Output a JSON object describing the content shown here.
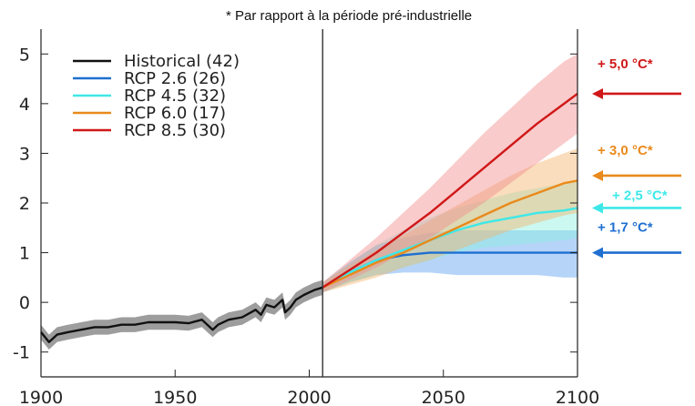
{
  "chart_data": {
    "type": "line",
    "note": "* Par rapport à la période pré-industrielle",
    "xlim": [
      1900,
      2100
    ],
    "ylim": [
      -1.5,
      5.5
    ],
    "x_ticks": [
      "1900",
      "1950",
      "2000",
      "2050",
      "2100"
    ],
    "y_ticks": [
      "5",
      "4",
      "3",
      "2",
      "1",
      "0",
      "-1"
    ],
    "divider_x": 2005,
    "grid": false,
    "legend_position": "top-left",
    "series": [
      {
        "name": "Historical (42)",
        "color": "#111111",
        "band_color": "#8c8c8c",
        "x": [
          1900,
          1903,
          1906,
          1910,
          1915,
          1920,
          1925,
          1930,
          1935,
          1940,
          1945,
          1950,
          1955,
          1960,
          1962,
          1964,
          1966,
          1970,
          1975,
          1980,
          1982,
          1984,
          1987,
          1990,
          1991,
          1993,
          1995,
          1998,
          2000,
          2002,
          2005
        ],
        "y": [
          -0.6,
          -0.8,
          -0.65,
          -0.6,
          -0.55,
          -0.5,
          -0.5,
          -0.45,
          -0.45,
          -0.4,
          -0.4,
          -0.4,
          -0.42,
          -0.35,
          -0.45,
          -0.55,
          -0.45,
          -0.35,
          -0.3,
          -0.15,
          -0.25,
          -0.05,
          -0.1,
          0.05,
          -0.2,
          -0.1,
          0.05,
          0.15,
          0.2,
          0.25,
          0.3
        ],
        "band": 0.15
      },
      {
        "name": "RCP 2.6 (26)",
        "color": "#1f6fd1",
        "band_color": "#5aa0f0",
        "x": [
          2005,
          2015,
          2025,
          2035,
          2045,
          2055,
          2065,
          2075,
          2085,
          2095,
          2100
        ],
        "y": [
          0.3,
          0.6,
          0.85,
          0.95,
          1.0,
          1.0,
          1.0,
          1.0,
          1.0,
          1.0,
          1.0
        ],
        "band_lo": [
          0.2,
          0.4,
          0.55,
          0.6,
          0.6,
          0.55,
          0.55,
          0.55,
          0.55,
          0.5,
          0.5
        ],
        "band_hi": [
          0.4,
          0.8,
          1.15,
          1.3,
          1.4,
          1.45,
          1.45,
          1.45,
          1.45,
          1.45,
          1.45
        ]
      },
      {
        "name": "RCP 4.5 (32)",
        "color": "#3ee8e8",
        "band_color": "#8cf0e0",
        "x": [
          2005,
          2015,
          2025,
          2035,
          2045,
          2055,
          2065,
          2075,
          2085,
          2095,
          2100
        ],
        "y": [
          0.3,
          0.6,
          0.85,
          1.05,
          1.25,
          1.45,
          1.6,
          1.7,
          1.8,
          1.85,
          1.9
        ],
        "band_lo": [
          0.2,
          0.4,
          0.55,
          0.7,
          0.85,
          1.0,
          1.1,
          1.15,
          1.2,
          1.25,
          1.3
        ],
        "band_hi": [
          0.4,
          0.8,
          1.15,
          1.45,
          1.7,
          1.9,
          2.05,
          2.2,
          2.3,
          2.4,
          2.45
        ]
      },
      {
        "name": "RCP 6.0 (17)",
        "color": "#e98a1c",
        "band_color": "#f5b46a",
        "x": [
          2005,
          2015,
          2025,
          2035,
          2045,
          2055,
          2065,
          2075,
          2085,
          2095,
          2100
        ],
        "y": [
          0.3,
          0.55,
          0.8,
          1.0,
          1.25,
          1.5,
          1.75,
          2.0,
          2.2,
          2.4,
          2.45
        ],
        "band_lo": [
          0.2,
          0.35,
          0.5,
          0.7,
          0.85,
          1.05,
          1.25,
          1.45,
          1.6,
          1.75,
          1.8
        ],
        "band_hi": [
          0.4,
          0.75,
          1.05,
          1.35,
          1.65,
          1.95,
          2.25,
          2.55,
          2.8,
          3.0,
          3.1
        ]
      },
      {
        "name": "RCP 8.5 (30)",
        "color": "#d01818",
        "band_color": "#f28c8c",
        "x": [
          2005,
          2015,
          2025,
          2035,
          2045,
          2055,
          2065,
          2075,
          2085,
          2095,
          2100
        ],
        "y": [
          0.3,
          0.65,
          1.0,
          1.4,
          1.8,
          2.25,
          2.7,
          3.15,
          3.6,
          4.0,
          4.2
        ],
        "band_lo": [
          0.2,
          0.45,
          0.7,
          1.0,
          1.3,
          1.65,
          2.0,
          2.4,
          2.8,
          3.2,
          3.4
        ],
        "band_hi": [
          0.4,
          0.85,
          1.3,
          1.8,
          2.3,
          2.85,
          3.4,
          3.9,
          4.4,
          4.85,
          5.0
        ]
      }
    ],
    "annotations": [
      {
        "text": "+ 5,0 °C*",
        "color": "#d01818",
        "y": 4.2
      },
      {
        "text": "+ 3,0 °C*",
        "color": "#e98a1c",
        "y": 2.55
      },
      {
        "text": "+ 2,5 °C*",
        "color": "#3ee8e8",
        "y": 1.9
      },
      {
        "text": "+ 1,7 °C*",
        "color": "#1f6fd1",
        "y": 1.0
      }
    ]
  }
}
